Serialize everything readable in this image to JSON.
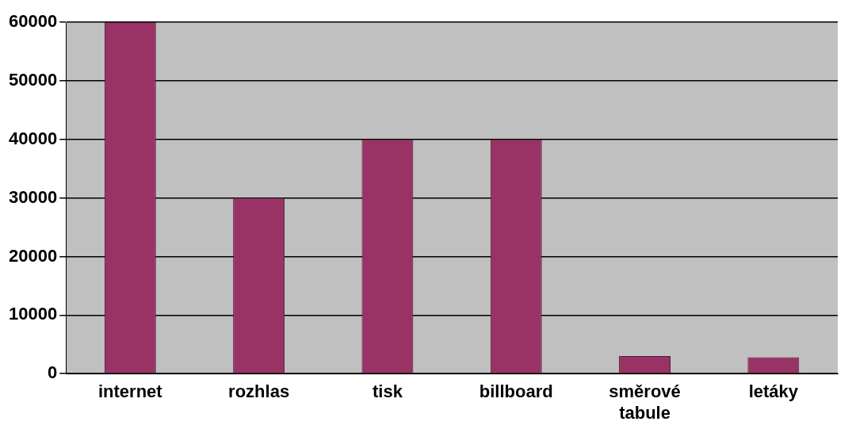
{
  "chart_data": {
    "type": "bar",
    "categories": [
      "internet",
      "rozhlas",
      "tisk",
      "billboard",
      "směrové tabule",
      "letáky"
    ],
    "values": [
      60000,
      30000,
      40000,
      40000,
      3000,
      2800
    ],
    "color": "#993366",
    "ylim": [
      0,
      60000
    ],
    "yticks": [
      0,
      10000,
      20000,
      30000,
      40000,
      50000,
      60000
    ],
    "grid": "y",
    "legend": false
  }
}
